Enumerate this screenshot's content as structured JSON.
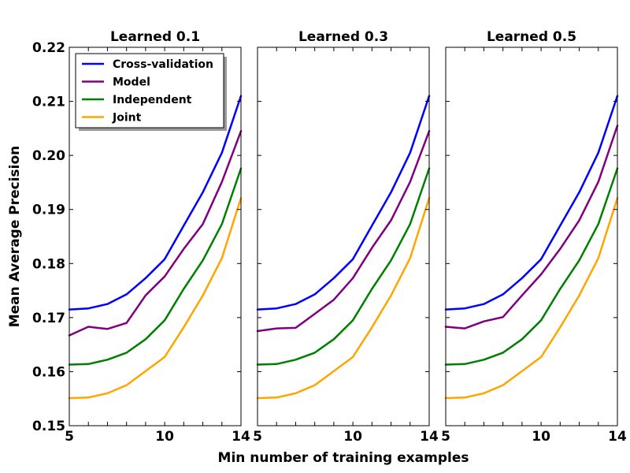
{
  "figure": {
    "ylabel": "Mean Average Precision",
    "xlabel": "Min number of training examples"
  },
  "legend": {
    "placement": "top-left of first panel",
    "entries": [
      "Cross-validation",
      "Model",
      "Independent",
      "Joint"
    ]
  },
  "colors": {
    "Cross-validation": "#0000ff",
    "Model": "#800080",
    "Independent": "#008000",
    "Joint": "#ffa500"
  },
  "chart_data": [
    {
      "type": "line",
      "title": "Learned 0.1",
      "x": [
        5,
        6,
        7,
        8,
        9,
        10,
        11,
        12,
        13,
        14
      ],
      "xlim": [
        5,
        14
      ],
      "ylim": [
        0.15,
        0.22
      ],
      "xticks": [
        "5",
        "10",
        "14"
      ],
      "yticks": [
        "0.15",
        "0.16",
        "0.17",
        "0.18",
        "0.19",
        "0.20",
        "0.21",
        "0.22"
      ],
      "series": [
        {
          "name": "Cross-validation",
          "values": [
            0.1715,
            0.1717,
            0.1725,
            0.1743,
            0.1773,
            0.1808,
            0.187,
            0.1932,
            0.2005,
            0.211
          ]
        },
        {
          "name": "Model",
          "values": [
            0.1667,
            0.1683,
            0.1679,
            0.169,
            0.1741,
            0.1776,
            0.1827,
            0.1873,
            0.1951,
            0.2045
          ]
        },
        {
          "name": "Independent",
          "values": [
            0.1613,
            0.1614,
            0.1622,
            0.1635,
            0.166,
            0.1695,
            0.1753,
            0.1806,
            0.1873,
            0.1976
          ]
        },
        {
          "name": "Joint",
          "values": [
            0.1551,
            0.1552,
            0.156,
            0.1575,
            0.1601,
            0.1627,
            0.1682,
            0.1741,
            0.181,
            0.1921
          ]
        }
      ]
    },
    {
      "type": "line",
      "title": "Learned 0.3",
      "x": [
        5,
        6,
        7,
        8,
        9,
        10,
        11,
        12,
        13,
        14
      ],
      "xlim": [
        5,
        14
      ],
      "ylim": [
        0.15,
        0.22
      ],
      "xticks": [
        "5",
        "10",
        "14"
      ],
      "yticks": [],
      "series": [
        {
          "name": "Cross-validation",
          "values": [
            0.1715,
            0.1717,
            0.1725,
            0.1743,
            0.1773,
            0.1808,
            0.187,
            0.1932,
            0.2005,
            0.211
          ]
        },
        {
          "name": "Model",
          "values": [
            0.1675,
            0.168,
            0.1681,
            0.1707,
            0.1733,
            0.1773,
            0.1829,
            0.188,
            0.1951,
            0.2045
          ]
        },
        {
          "name": "Independent",
          "values": [
            0.1613,
            0.1614,
            0.1622,
            0.1635,
            0.166,
            0.1695,
            0.1753,
            0.1806,
            0.1873,
            0.1976
          ]
        },
        {
          "name": "Joint",
          "values": [
            0.1551,
            0.1552,
            0.156,
            0.1575,
            0.1601,
            0.1627,
            0.1682,
            0.1741,
            0.181,
            0.1921
          ]
        }
      ]
    },
    {
      "type": "line",
      "title": "Learned 0.5",
      "x": [
        5,
        6,
        7,
        8,
        9,
        10,
        11,
        12,
        13,
        14
      ],
      "xlim": [
        5,
        14
      ],
      "ylim": [
        0.15,
        0.22
      ],
      "xticks": [
        "5",
        "10",
        "14"
      ],
      "yticks": [],
      "series": [
        {
          "name": "Cross-validation",
          "values": [
            0.1715,
            0.1717,
            0.1725,
            0.1743,
            0.1773,
            0.1808,
            0.187,
            0.1932,
            0.2005,
            0.211
          ]
        },
        {
          "name": "Model",
          "values": [
            0.1683,
            0.168,
            0.1693,
            0.1701,
            0.1741,
            0.178,
            0.1827,
            0.188,
            0.1951,
            0.2055
          ]
        },
        {
          "name": "Independent",
          "values": [
            0.1613,
            0.1614,
            0.1622,
            0.1635,
            0.166,
            0.1695,
            0.1753,
            0.1806,
            0.1873,
            0.1976
          ]
        },
        {
          "name": "Joint",
          "values": [
            0.1551,
            0.1552,
            0.156,
            0.1575,
            0.1601,
            0.1627,
            0.1682,
            0.1741,
            0.181,
            0.1921
          ]
        }
      ]
    }
  ]
}
